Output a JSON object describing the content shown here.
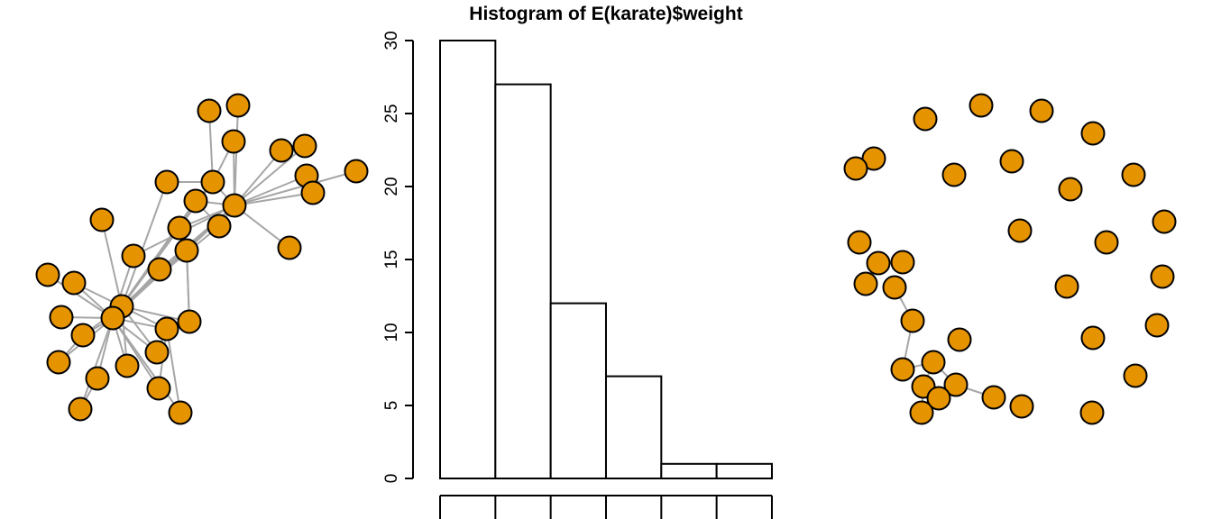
{
  "colors": {
    "node_fill": "#e69300",
    "node_stroke": "#000000",
    "edge": "#a6a6a6"
  },
  "chart_data": [
    {
      "type": "network",
      "node_count": 34,
      "node_color": "#e69300",
      "edge_color": "#a6a6a6"
    },
    {
      "type": "bar",
      "title": "Histogram of E(karate)$weight",
      "xlabel": "",
      "ylabel": "",
      "bins": 6,
      "values": [
        30,
        27,
        12,
        7,
        1,
        1
      ],
      "ylim": [
        0,
        30
      ],
      "yticks": [
        0,
        5,
        10,
        15,
        20,
        25,
        30
      ],
      "grid": false
    },
    {
      "type": "network",
      "node_count": 34,
      "node_color": "#e69300",
      "edge_color": "#a6a6a6"
    }
  ]
}
